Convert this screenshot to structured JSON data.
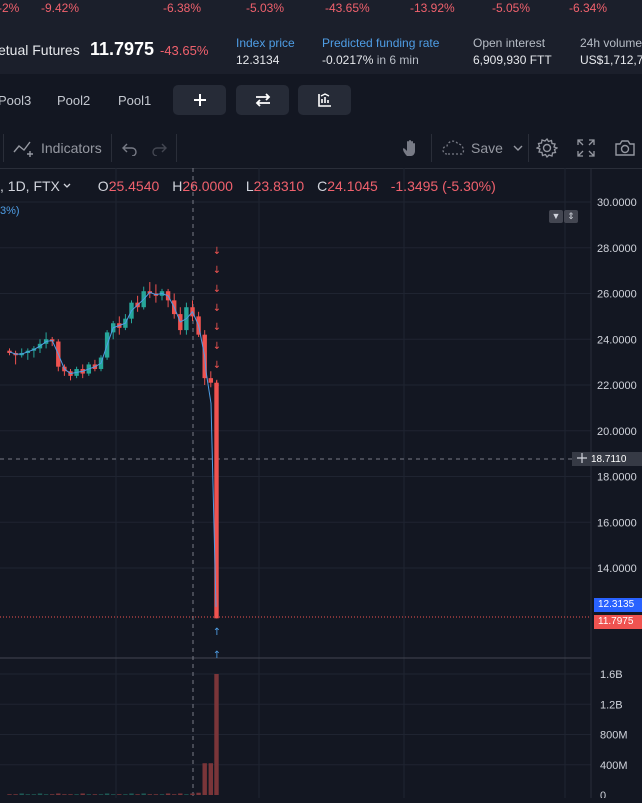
{
  "ticker": [
    "-2%",
    "-9.42%",
    "-6.38%",
    "-5.03%",
    "-43.65%",
    "-13.92%",
    "-5.05%",
    "-6.34%"
  ],
  "market": {
    "name": "etual Futures",
    "price": "11.7975",
    "change": "-43.65%"
  },
  "stats": {
    "index_price_label": "Index price",
    "index_price_value": "12.3134",
    "funding_label": "Predicted funding rate",
    "funding_value": "-0.0217%",
    "funding_time": "in 6 min",
    "oi_label": "Open interest",
    "oi_value": "6,909,930 FTT",
    "vol_label": "24h volume",
    "vol_value": "US$1,712,7"
  },
  "pools": [
    "Pool3",
    "Pool2",
    "Pool1"
  ],
  "toolbar": {
    "indicators_label": "Indicators",
    "save_label": "Save"
  },
  "legend": {
    "symbol": ", 1D, FTX",
    "o_label": "O",
    "o_value": "25.4540",
    "h_label": "H",
    "h_value": "26.0000",
    "l_label": "L",
    "l_value": "23.8310",
    "c_label": "C",
    "c_value": "24.1045",
    "change": "-1.3495 (-5.30%)",
    "indicator_pct": "3%)"
  },
  "colors": {
    "up": "#26a69a",
    "down": "#ef5350",
    "background": "#131722",
    "accent_blue": "#2962ff"
  },
  "chart_data": {
    "type": "candlestick",
    "price_axis": [
      "30.0000",
      "28.0000",
      "26.0000",
      "24.0000",
      "22.0000",
      "20.0000",
      "18.0000",
      "16.0000",
      "14.0000"
    ],
    "volume_axis": [
      "1.6B",
      "1.2B",
      "800M",
      "400M",
      "0"
    ],
    "crosshair_price": "18.7110",
    "index_price_tag": "12.3135",
    "last_price_tag": "11.7975",
    "ylim": [
      12.5,
      30.0
    ],
    "volume_max": 1.6,
    "candles": [
      [
        23.5,
        23.6,
        23.3,
        23.4
      ],
      [
        23.4,
        23.5,
        22.9,
        23.3
      ],
      [
        23.3,
        23.6,
        23.2,
        23.4
      ],
      [
        23.4,
        23.6,
        23.1,
        23.5
      ],
      [
        23.5,
        23.7,
        23.2,
        23.6
      ],
      [
        23.6,
        24.0,
        23.4,
        23.8
      ],
      [
        23.8,
        24.3,
        23.6,
        24.0
      ],
      [
        24.0,
        24.1,
        23.7,
        23.9
      ],
      [
        23.9,
        24.0,
        22.6,
        22.8
      ],
      [
        22.8,
        22.9,
        22.4,
        22.6
      ],
      [
        22.6,
        22.7,
        22.2,
        22.4
      ],
      [
        22.4,
        22.8,
        22.3,
        22.7
      ],
      [
        22.7,
        22.9,
        22.3,
        22.5
      ],
      [
        22.5,
        23.0,
        22.4,
        22.9
      ],
      [
        22.9,
        23.1,
        22.6,
        22.7
      ],
      [
        22.7,
        23.3,
        22.6,
        23.2
      ],
      [
        23.2,
        24.4,
        23.1,
        24.3
      ],
      [
        24.3,
        24.8,
        24.0,
        24.7
      ],
      [
        24.7,
        25.0,
        24.2,
        24.5
      ],
      [
        24.5,
        25.1,
        24.4,
        24.9
      ],
      [
        24.9,
        25.7,
        24.7,
        25.6
      ],
      [
        25.6,
        25.9,
        25.2,
        25.4
      ],
      [
        25.4,
        26.3,
        25.3,
        26.1
      ],
      [
        26.1,
        26.5,
        25.8,
        26.0
      ],
      [
        26.0,
        26.4,
        25.6,
        25.9
      ],
      [
        25.9,
        26.2,
        25.7,
        26.1
      ],
      [
        26.1,
        26.2,
        25.4,
        25.7
      ],
      [
        25.7,
        26.0,
        24.9,
        25.1
      ],
      [
        25.1,
        25.4,
        24.2,
        24.4
      ],
      [
        24.4,
        25.6,
        24.2,
        25.4
      ],
      [
        25.4,
        25.7,
        24.8,
        25.0
      ],
      [
        25.0,
        25.2,
        24.1,
        24.2
      ],
      [
        24.2,
        24.4,
        22.0,
        22.3
      ],
      [
        22.3,
        22.6,
        21.9,
        22.1
      ],
      [
        22.1,
        22.2,
        11.8,
        11.8
      ]
    ],
    "volumes": [
      0.01,
      0.01,
      0.02,
      0.01,
      0.01,
      0.02,
      0.01,
      0.01,
      0.02,
      0.01,
      0.01,
      0.01,
      0.02,
      0.01,
      0.01,
      0.01,
      0.02,
      0.01,
      0.01,
      0.01,
      0.02,
      0.01,
      0.02,
      0.01,
      0.01,
      0.01,
      0.02,
      0.01,
      0.02,
      0.01,
      0.02,
      0.03,
      0.42,
      0.42,
      1.6
    ],
    "markers_down": 8,
    "markers_up": 2
  }
}
